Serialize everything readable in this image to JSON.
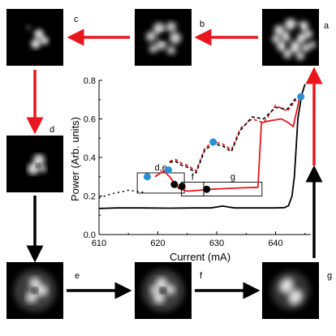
{
  "figure": {
    "panel_labels": {
      "a": "a",
      "b": "b",
      "c": "c",
      "d": "d",
      "e": "e",
      "f": "f",
      "g": "g"
    },
    "colors": {
      "red": "#e8161d",
      "black": "#000000",
      "blue": "#2b8fd6",
      "gray": "#707070"
    }
  },
  "chart_data": {
    "type": "line",
    "xlabel": "Current (mA)",
    "ylabel": "Power (Arb. units)",
    "xlim": [
      610,
      646
    ],
    "ylim": [
      0.0,
      0.8
    ],
    "xticks": [
      610,
      620,
      630,
      640
    ],
    "yticks": [
      0.0,
      0.2,
      0.4,
      0.6,
      0.8
    ],
    "xtick_labels": [
      "610",
      "620",
      "630",
      "640"
    ],
    "ytick_labels": [
      "0.0",
      "0.2",
      "0.4",
      "0.6",
      "0.8"
    ],
    "series": [
      {
        "color": "#000000",
        "style": "solid",
        "x": [
          610,
          613,
          617,
          622,
          626,
          629,
          631,
          633,
          636,
          638,
          640,
          641.5,
          642.2,
          642.8,
          643.2,
          643.5,
          643.8,
          644.2,
          644.5,
          645
        ],
        "y": [
          0.135,
          0.138,
          0.138,
          0.137,
          0.138,
          0.138,
          0.148,
          0.138,
          0.138,
          0.138,
          0.138,
          0.14,
          0.15,
          0.2,
          0.3,
          0.45,
          0.6,
          0.68,
          0.73,
          0.78
        ]
      },
      {
        "color": "#000000",
        "style": "dotted",
        "x": [
          610,
          612,
          615,
          617.5
        ],
        "y": [
          0.19,
          0.21,
          0.23,
          0.22
        ]
      },
      {
        "color": "#e8161d",
        "style": "solid",
        "x": [
          619.5,
          621,
          622,
          623.5,
          625,
          627,
          629,
          631,
          634,
          637,
          637.6,
          639,
          641,
          642.2,
          643,
          643.3,
          643.6,
          644,
          644.5
        ],
        "y": [
          0.3,
          0.33,
          0.3,
          0.24,
          0.225,
          0.23,
          0.235,
          0.238,
          0.242,
          0.245,
          0.58,
          0.59,
          0.6,
          0.58,
          0.56,
          0.6,
          0.64,
          0.7,
          0.72
        ]
      },
      {
        "color": "#e8161d",
        "style": "dashed",
        "x": [
          622,
          623,
          624,
          625,
          626.5,
          628,
          629.5,
          631,
          632.5,
          634,
          636,
          638,
          640,
          642,
          643.5
        ],
        "y": [
          0.38,
          0.39,
          0.37,
          0.36,
          0.33,
          0.45,
          0.48,
          0.47,
          0.44,
          0.55,
          0.6,
          0.58,
          0.67,
          0.64,
          0.7
        ]
      },
      {
        "color": "#000000",
        "style": "dashed",
        "x": [
          622,
          623,
          624,
          625,
          626.5,
          628,
          629.5,
          631,
          632.5,
          634,
          636,
          638,
          640,
          642,
          643.5
        ],
        "y": [
          0.375,
          0.38,
          0.36,
          0.35,
          0.32,
          0.44,
          0.47,
          0.46,
          0.43,
          0.54,
          0.61,
          0.6,
          0.66,
          0.65,
          0.71
        ]
      }
    ],
    "points_blue": [
      {
        "x": 618.2,
        "y": 0.3
      },
      {
        "x": 621.8,
        "y": 0.335
      },
      {
        "x": 629.4,
        "y": 0.48
      },
      {
        "x": 644.3,
        "y": 0.715
      }
    ],
    "points_black": [
      {
        "x": 622.8,
        "y": 0.26
      },
      {
        "x": 624.1,
        "y": 0.25
      },
      {
        "x": 628.3,
        "y": 0.235
      }
    ],
    "boxes": [
      {
        "label": "d,e",
        "x0": 616.5,
        "x1": 624.5,
        "y0": 0.215,
        "y1": 0.32
      },
      {
        "label": "f",
        "x0": 624,
        "x1": 627.8,
        "y0": 0.2,
        "y1": 0.272
      },
      {
        "label": "g",
        "x0": 627.8,
        "x1": 637.7,
        "y0": 0.2,
        "y1": 0.272
      }
    ]
  }
}
